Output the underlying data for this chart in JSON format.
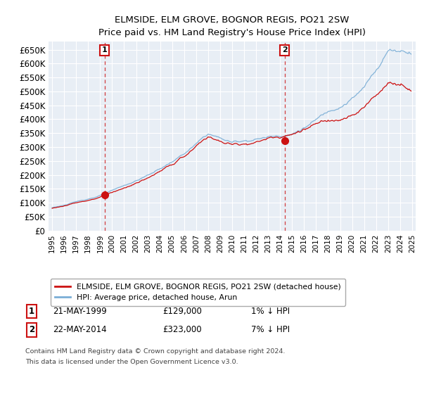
{
  "title": "ELMSIDE, ELM GROVE, BOGNOR REGIS, PO21 2SW",
  "subtitle": "Price paid vs. HM Land Registry's House Price Index (HPI)",
  "ylim": [
    0,
    680000
  ],
  "yticks": [
    0,
    50000,
    100000,
    150000,
    200000,
    250000,
    300000,
    350000,
    400000,
    450000,
    500000,
    550000,
    600000,
    650000
  ],
  "ytick_labels": [
    "£0",
    "£50K",
    "£100K",
    "£150K",
    "£200K",
    "£250K",
    "£300K",
    "£350K",
    "£400K",
    "£450K",
    "£500K",
    "£550K",
    "£600K",
    "£650K"
  ],
  "background_color": "#ffffff",
  "plot_bg_color": "#e8eef5",
  "grid_color": "#ffffff",
  "hpi_color": "#7aaed6",
  "price_color": "#cc1111",
  "sale1_date": 1999.38,
  "sale1_price": 129000,
  "sale2_date": 2014.38,
  "sale2_price": 323000,
  "legend_entries": [
    "ELMSIDE, ELM GROVE, BOGNOR REGIS, PO21 2SW (detached house)",
    "HPI: Average price, detached house, Arun"
  ],
  "annotation1_label": "1",
  "annotation2_label": "2",
  "footer1": "Contains HM Land Registry data © Crown copyright and database right 2024.",
  "footer2": "This data is licensed under the Open Government Licence v3.0.",
  "table_row1": [
    "1",
    "21-MAY-1999",
    "£129,000",
    "1% ↓ HPI"
  ],
  "table_row2": [
    "2",
    "22-MAY-2014",
    "£323,000",
    "7% ↓ HPI"
  ]
}
